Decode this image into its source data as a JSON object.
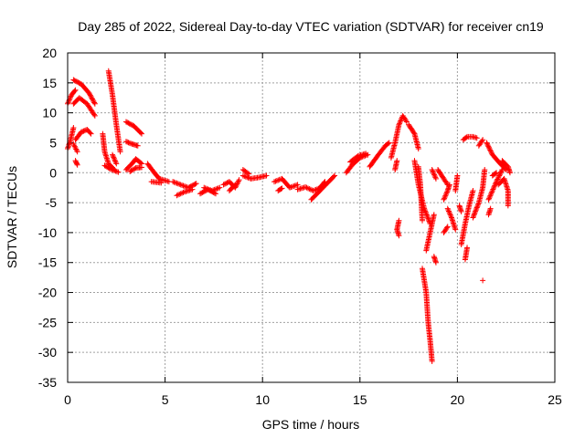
{
  "chart_data": {
    "type": "scatter",
    "title": "Day 285 of 2022, Sidereal Day-to-day VTEC variation (SDTVAR) for receiver cn19",
    "xlabel": "GPS time / hours",
    "ylabel": "SDTVAR / TECUs",
    "xlim": [
      0,
      25
    ],
    "ylim": [
      -35,
      20
    ],
    "x_ticks": [
      0,
      5,
      10,
      15,
      20,
      25
    ],
    "y_ticks": [
      -35,
      -30,
      -25,
      -20,
      -15,
      -10,
      -5,
      0,
      5,
      10,
      15,
      20
    ],
    "grid": true,
    "marker": "+",
    "series": [
      {
        "name": "SDTVAR",
        "color": "#ff0000",
        "segments": [
          [
            [
              0.0,
              11.5
            ],
            [
              0.2,
              13.0
            ],
            [
              0.4,
              13.8
            ]
          ],
          [
            [
              0.0,
              4.0
            ],
            [
              0.15,
              5.5
            ],
            [
              0.3,
              7.5
            ]
          ],
          [
            [
              0.3,
              11.5
            ],
            [
              0.6,
              12.5
            ],
            [
              1.0,
              11.5
            ],
            [
              1.4,
              9.5
            ]
          ],
          [
            [
              0.3,
              15.5
            ],
            [
              0.7,
              14.8
            ],
            [
              1.1,
              13.3
            ],
            [
              1.4,
              11.5
            ]
          ],
          [
            [
              0.4,
              5.5
            ],
            [
              0.7,
              6.8
            ],
            [
              1.0,
              7.2
            ],
            [
              1.2,
              6.5
            ]
          ],
          [
            [
              0.4,
              2.0
            ],
            [
              0.5,
              1.3
            ]
          ],
          [
            [
              0.5,
              3.5
            ],
            [
              0.3,
              4.8
            ]
          ],
          [
            [
              1.8,
              6.5
            ],
            [
              1.9,
              3.5
            ],
            [
              2.1,
              1.5
            ],
            [
              2.4,
              0.5
            ]
          ],
          [
            [
              1.9,
              1.2
            ],
            [
              2.2,
              0.6
            ],
            [
              2.6,
              0.1
            ]
          ],
          [
            [
              2.1,
              17.0
            ],
            [
              2.3,
              13.0
            ],
            [
              2.5,
              8.0
            ],
            [
              2.7,
              3.5
            ]
          ],
          [
            [
              2.3,
              3.0
            ],
            [
              2.5,
              1.5
            ]
          ],
          [
            [
              3.0,
              8.5
            ],
            [
              3.4,
              7.8
            ],
            [
              3.8,
              6.5
            ]
          ],
          [
            [
              3.0,
              5.2
            ],
            [
              3.3,
              4.8
            ],
            [
              3.6,
              4.5
            ]
          ],
          [
            [
              3.0,
              0.5
            ],
            [
              3.3,
              1.5
            ],
            [
              3.5,
              2.3
            ],
            [
              3.8,
              1.5
            ]
          ],
          [
            [
              3.2,
              0.2
            ],
            [
              3.5,
              0.8
            ],
            [
              3.8,
              0.9
            ]
          ],
          [
            [
              4.1,
              1.5
            ],
            [
              4.4,
              0.2
            ],
            [
              4.7,
              -1.0
            ],
            [
              5.2,
              -1.5
            ]
          ],
          [
            [
              4.3,
              -1.5
            ],
            [
              4.8,
              -1.7
            ]
          ],
          [
            [
              5.4,
              -1.5
            ],
            [
              5.8,
              -2.0
            ],
            [
              6.2,
              -2.5
            ],
            [
              6.6,
              -1.8
            ]
          ],
          [
            [
              5.6,
              -3.8
            ],
            [
              6.0,
              -3.2
            ],
            [
              6.4,
              -2.8
            ]
          ],
          [
            [
              6.8,
              -3.5
            ],
            [
              7.2,
              -2.8
            ],
            [
              7.6,
              -3.5
            ]
          ],
          [
            [
              7.0,
              -2.5
            ],
            [
              7.4,
              -3.0
            ],
            [
              7.8,
              -2.5
            ]
          ],
          [
            [
              8.0,
              -2.0
            ],
            [
              8.3,
              -1.5
            ],
            [
              8.6,
              -2.5
            ],
            [
              8.8,
              -1.2
            ]
          ],
          [
            [
              8.3,
              -3.0
            ],
            [
              8.6,
              -2.0
            ]
          ],
          [
            [
              9.0,
              -0.5
            ],
            [
              9.4,
              -1.0
            ],
            [
              9.8,
              -0.8
            ],
            [
              10.2,
              -0.5
            ]
          ],
          [
            [
              9.0,
              0.5
            ],
            [
              9.3,
              -0.2
            ]
          ],
          [
            [
              10.6,
              -1.5
            ],
            [
              11.0,
              -1.0
            ],
            [
              11.4,
              -2.5
            ],
            [
              11.8,
              -2.0
            ]
          ],
          [
            [
              10.8,
              -3.0
            ],
            [
              11.0,
              -2.6
            ]
          ],
          [
            [
              11.8,
              -2.8
            ],
            [
              12.2,
              -2.4
            ],
            [
              12.6,
              -3.0
            ],
            [
              13.0,
              -2.5
            ]
          ],
          [
            [
              12.5,
              -4.5
            ],
            [
              12.8,
              -3.5
            ],
            [
              13.1,
              -2.5
            ],
            [
              13.4,
              -1.5
            ],
            [
              13.7,
              -0.5
            ]
          ],
          [
            [
              12.9,
              -2.7
            ],
            [
              13.2,
              -1.5
            ]
          ],
          [
            [
              14.3,
              0.0
            ],
            [
              14.6,
              1.3
            ],
            [
              15.0,
              2.5
            ],
            [
              15.4,
              3.0
            ]
          ],
          [
            [
              14.5,
              1.8
            ],
            [
              14.9,
              2.8
            ],
            [
              15.3,
              3.2
            ]
          ],
          [
            [
              15.5,
              1.0
            ],
            [
              15.9,
              2.8
            ],
            [
              16.3,
              4.5
            ],
            [
              16.5,
              5.0
            ]
          ],
          [
            [
              16.6,
              2.5
            ],
            [
              16.8,
              5.0
            ],
            [
              17.0,
              8.0
            ],
            [
              17.2,
              9.5
            ],
            [
              17.4,
              8.5
            ]
          ],
          [
            [
              16.8,
              0.5
            ],
            [
              16.9,
              2.0
            ]
          ],
          [
            [
              17.0,
              -8.0
            ],
            [
              16.9,
              -9.5
            ],
            [
              17.0,
              -10.5
            ]
          ],
          [
            [
              17.5,
              8.0
            ],
            [
              17.8,
              6.5
            ],
            [
              18.0,
              4.0
            ]
          ],
          [
            [
              17.8,
              2.0
            ],
            [
              18.0,
              -2.0
            ],
            [
              18.3,
              -6.0
            ],
            [
              18.6,
              -8.5
            ]
          ],
          [
            [
              18.0,
              1.0
            ],
            [
              18.1,
              -2.0
            ],
            [
              18.2,
              -8.0
            ]
          ],
          [
            [
              18.2,
              -16.0
            ],
            [
              18.4,
              -20.0
            ],
            [
              18.5,
              -25.0
            ],
            [
              18.6,
              -28.0
            ],
            [
              18.7,
              -31.5
            ]
          ],
          [
            [
              18.4,
              -13.0
            ],
            [
              18.6,
              -10.0
            ],
            [
              18.8,
              -7.0
            ]
          ],
          [
            [
              18.8,
              -14.0
            ],
            [
              18.9,
              -15.0
            ]
          ],
          [
            [
              18.9,
              -1.0
            ],
            [
              18.7,
              0.5
            ]
          ],
          [
            [
              19.0,
              0.5
            ],
            [
              19.3,
              -1.0
            ],
            [
              19.5,
              -2.0
            ]
          ],
          [
            [
              19.3,
              -4.5
            ],
            [
              19.5,
              -3.0
            ],
            [
              19.6,
              -2.0
            ]
          ],
          [
            [
              19.5,
              -6.0
            ],
            [
              19.7,
              -7.5
            ],
            [
              19.9,
              -9.5
            ]
          ],
          [
            [
              19.3,
              -10.0
            ],
            [
              19.5,
              -9.0
            ]
          ],
          [
            [
              19.9,
              -3.0
            ],
            [
              20.0,
              -0.5
            ]
          ],
          [
            [
              20.1,
              -5.5
            ],
            [
              20.2,
              -6.5
            ]
          ],
          [
            [
              20.2,
              -12.0
            ],
            [
              20.4,
              -8.5
            ],
            [
              20.6,
              -5.5
            ],
            [
              20.8,
              -3.0
            ]
          ],
          [
            [
              20.3,
              5.5
            ],
            [
              20.5,
              6.0
            ],
            [
              20.8,
              6.0
            ],
            [
              21.0,
              5.8
            ]
          ],
          [
            [
              20.4,
              -14.5
            ],
            [
              20.5,
              -12.5
            ]
          ],
          [
            [
              20.8,
              -7.5
            ],
            [
              21.1,
              -5.0
            ],
            [
              21.3,
              -2.5
            ],
            [
              21.4,
              0.5
            ]
          ],
          [
            [
              21.1,
              4.5
            ],
            [
              21.3,
              5.5
            ]
          ],
          [
            [
              21.3,
              -18.0
            ]
          ],
          [
            [
              21.5,
              5.0
            ],
            [
              21.8,
              3.0
            ],
            [
              22.2,
              1.5
            ],
            [
              22.5,
              0.5
            ]
          ],
          [
            [
              21.6,
              -4.5
            ],
            [
              21.8,
              -3.0
            ],
            [
              22.0,
              -1.5
            ],
            [
              22.3,
              0.5
            ]
          ],
          [
            [
              21.8,
              -0.5
            ],
            [
              22.0,
              0.0
            ]
          ],
          [
            [
              22.1,
              -2.0
            ],
            [
              22.4,
              -1.0
            ],
            [
              22.6,
              -3.0
            ],
            [
              22.6,
              -5.5
            ]
          ],
          [
            [
              22.3,
              2.0
            ],
            [
              22.6,
              1.0
            ],
            [
              22.7,
              0.0
            ]
          ],
          [
            [
              21.6,
              -7.0
            ],
            [
              21.7,
              -6.0
            ]
          ]
        ]
      }
    ]
  }
}
